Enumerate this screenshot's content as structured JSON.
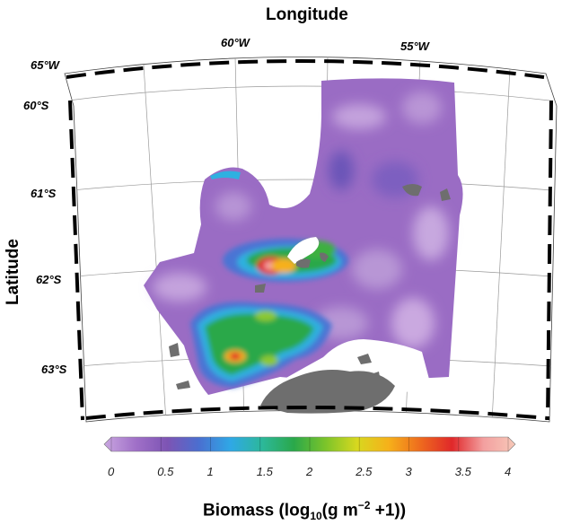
{
  "figure": {
    "x_title": "Longitude",
    "y_title": "Latitude",
    "colorbar_title_main": "Biomass (log",
    "colorbar_title_sub": "10",
    "colorbar_title_mid": "(g m",
    "colorbar_title_sup": "−2",
    "colorbar_title_end": " +1))"
  },
  "longitude_ticks": [
    "65°W",
    "60°W",
    "55°W"
  ],
  "latitude_ticks": [
    "60°S",
    "61°S",
    "62°S",
    "63°S"
  ],
  "colorbar": {
    "ticks": [
      "0",
      "0.5",
      "1",
      "1.5",
      "2",
      "2.5",
      "3",
      "3.5",
      "4"
    ],
    "range": [
      0,
      4
    ],
    "stops": [
      "#c9a6e0",
      "#a070c8",
      "#7d54b4",
      "#4a6fd0",
      "#2fa8e6",
      "#2cb89a",
      "#2aa84a",
      "#7cc42a",
      "#d8d81f",
      "#f6b01a",
      "#ee6a1e",
      "#e0282a",
      "#f3a0a0",
      "#f7c8b8"
    ]
  },
  "colors": {
    "land": "#6e6e6e",
    "low_biomass": "#9a6cc4",
    "frame": "#000000"
  }
}
